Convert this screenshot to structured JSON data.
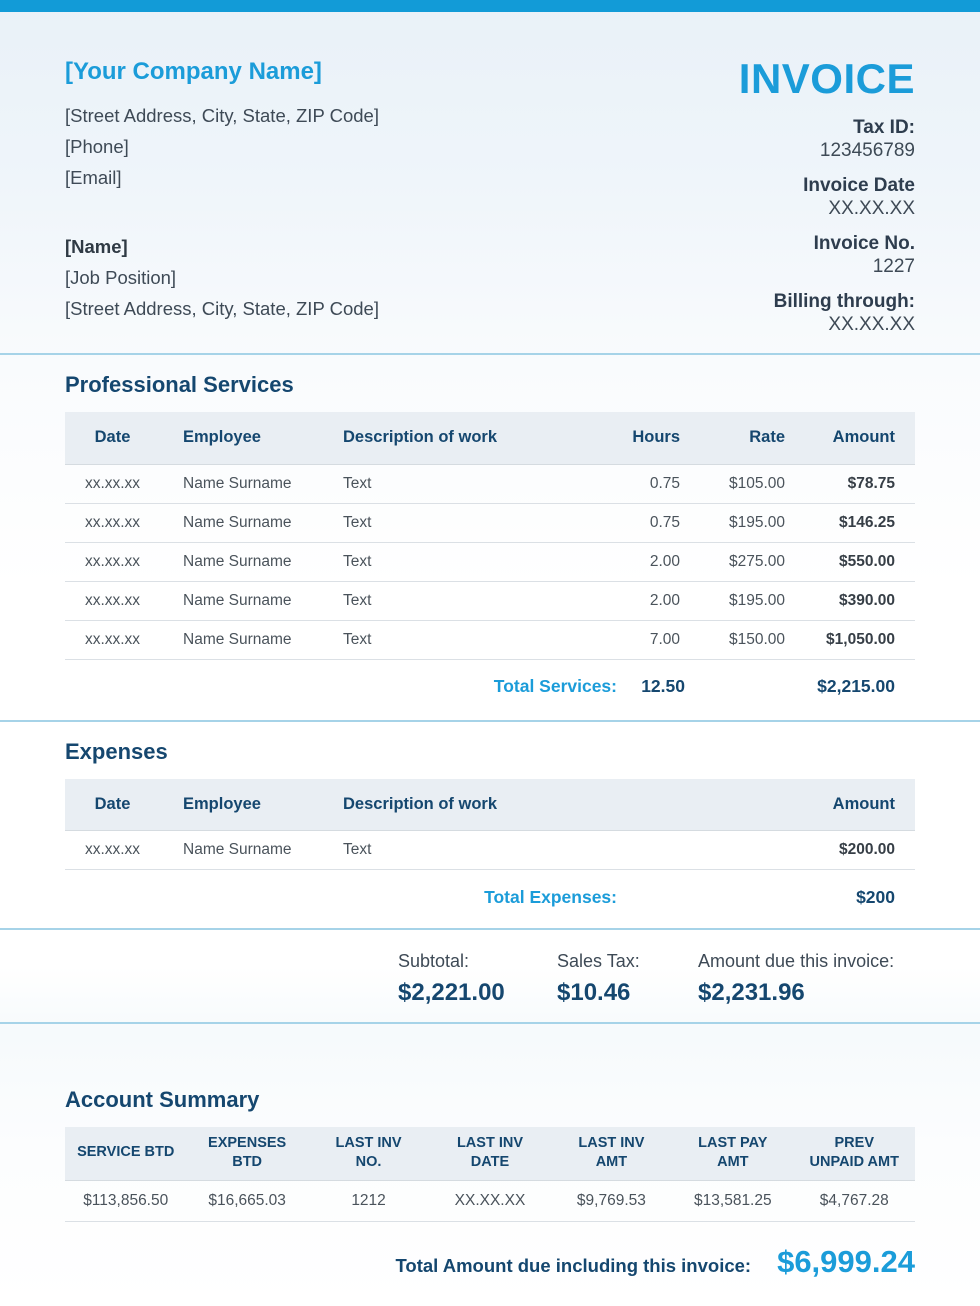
{
  "header": {
    "company_name": "[Your Company Name]",
    "company_address": "[Street Address, City, State, ZIP Code]",
    "company_phone": "[Phone]",
    "company_email": "[Email]",
    "contact_name": "[Name]",
    "contact_position": "[Job Position]",
    "contact_address": "[Street Address, City, State, ZIP Code]",
    "invoice_title": "INVOICE",
    "tax_id_label": "Tax ID:",
    "tax_id_value": "123456789",
    "invoice_date_label": "Invoice Date",
    "invoice_date_value": "XX.XX.XX",
    "invoice_no_label": "Invoice No.",
    "invoice_no_value": "1227",
    "billing_through_label": "Billing through:",
    "billing_through_value": "XX.XX.XX"
  },
  "services": {
    "title": "Professional Services",
    "columns": [
      "Date",
      "Employee",
      "Description of work",
      "Hours",
      "Rate",
      "Amount"
    ],
    "rows": [
      {
        "date": "xx.xx.xx",
        "employee": "Name Surname",
        "description": "Text",
        "hours": "0.75",
        "rate": "$105.00",
        "amount": "$78.75"
      },
      {
        "date": "xx.xx.xx",
        "employee": "Name Surname",
        "description": "Text",
        "hours": "0.75",
        "rate": "$195.00",
        "amount": "$146.25"
      },
      {
        "date": "xx.xx.xx",
        "employee": "Name Surname",
        "description": "Text",
        "hours": "2.00",
        "rate": "$275.00",
        "amount": "$550.00"
      },
      {
        "date": "xx.xx.xx",
        "employee": "Name Surname",
        "description": "Text",
        "hours": "2.00",
        "rate": "$195.00",
        "amount": "$390.00"
      },
      {
        "date": "xx.xx.xx",
        "employee": "Name Surname",
        "description": "Text",
        "hours": "7.00",
        "rate": "$150.00",
        "amount": "$1,050.00"
      }
    ],
    "total_label": "Total Services:",
    "total_hours": "12.50",
    "total_amount": "$2,215.00"
  },
  "expenses": {
    "title": "Expenses",
    "columns": [
      "Date",
      "Employee",
      "Description of work",
      "Amount"
    ],
    "rows": [
      {
        "date": "xx.xx.xx",
        "employee": "Name Surname",
        "description": "Text",
        "amount": "$200.00"
      }
    ],
    "total_label": "Total Expenses:",
    "total_amount": "$200"
  },
  "totals": {
    "subtotal_label": "Subtotal:",
    "subtotal_value": "$2,221.00",
    "sales_tax_label": "Sales Tax:",
    "sales_tax_value": "$10.46",
    "amount_due_label": "Amount due this invoice:",
    "amount_due_value": "$2,231.96"
  },
  "account_summary": {
    "title": "Account Summary",
    "columns": [
      "SERVICE BTD",
      "EXPENSES\nBTD",
      "LAST INV\nNO.",
      "LAST INV\nDATE",
      "LAST INV\nAMT",
      "LAST PAY\nAMT",
      "PREV\nUNPAID AMT"
    ],
    "row": [
      "$113,856.50",
      "$16,665.03",
      "1212",
      "XX.XX.XX",
      "$9,769.53",
      "$13,581.25",
      "$4,767.28"
    ],
    "total_label": "Total Amount due including this invoice:",
    "total_value": "$6,999.24"
  },
  "colors": {
    "accent_blue": "#1b9cd9",
    "navy": "#15476f",
    "top_bar": "#129bd7",
    "rule_blue": "#a6d3e8",
    "table_header_bg": "#e9eef3"
  }
}
